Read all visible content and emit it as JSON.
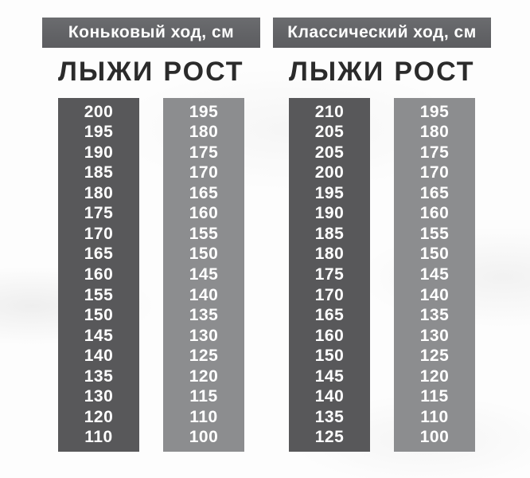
{
  "colors": {
    "background": "#fdfdfd",
    "title_bar": "#626366",
    "skis_column": "#58585a",
    "height_column": "#8c8d8f",
    "header_text": "#2b2b2b",
    "number_text": "#ffffff"
  },
  "chart_data": [
    {
      "type": "table",
      "title": "Коньковый ход, см",
      "columns": [
        {
          "header": "ЛЫЖИ",
          "values": [
            200,
            195,
            190,
            185,
            180,
            175,
            170,
            165,
            160,
            155,
            150,
            145,
            140,
            135,
            130,
            120,
            110
          ]
        },
        {
          "header": "РОСТ",
          "values": [
            195,
            180,
            175,
            170,
            165,
            160,
            155,
            150,
            145,
            140,
            135,
            130,
            125,
            120,
            115,
            110,
            100
          ]
        }
      ]
    },
    {
      "type": "table",
      "title": "Классический ход, см",
      "columns": [
        {
          "header": "ЛЫЖИ",
          "values": [
            210,
            205,
            205,
            200,
            195,
            190,
            185,
            180,
            175,
            170,
            165,
            160,
            150,
            145,
            140,
            135,
            125
          ]
        },
        {
          "header": "РОСТ",
          "values": [
            195,
            180,
            175,
            170,
            165,
            160,
            155,
            150,
            145,
            140,
            135,
            130,
            125,
            120,
            115,
            110,
            100
          ]
        }
      ]
    }
  ]
}
